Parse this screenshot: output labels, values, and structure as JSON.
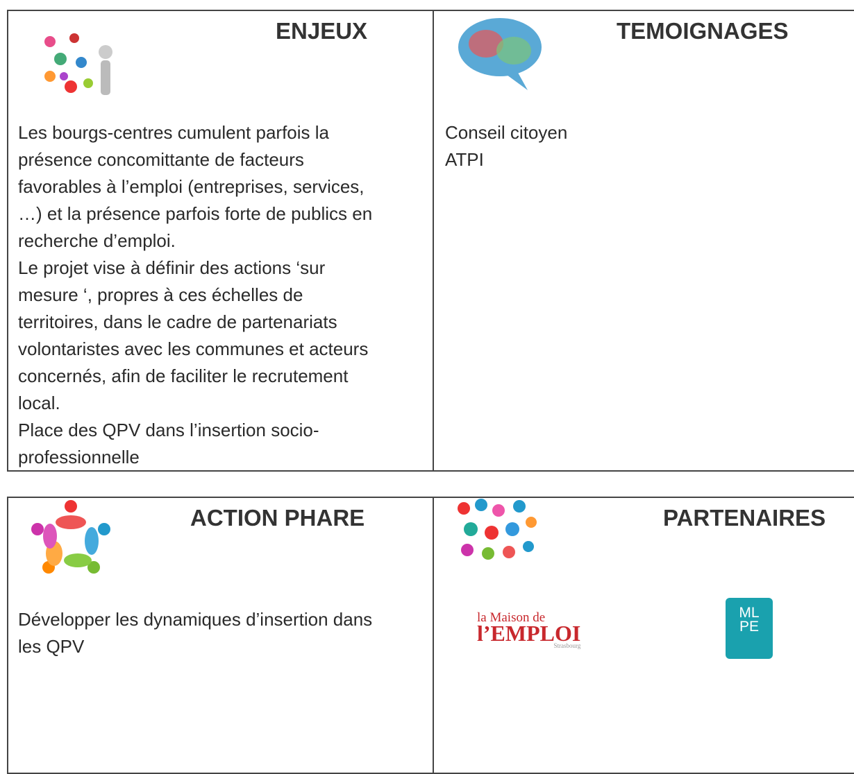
{
  "sections": [
    {
      "title": "ENJEUX",
      "paragraphs": [
        [
          "Les bourgs-centres cumulent parfois la",
          "présence concomittante de facteurs",
          "favorables à l’emploi (entreprises, services,",
          "…) et la présence parfois forte de publics en",
          "recherche d’emploi."
        ],
        [
          "Le projet vise à définir des actions ‘sur",
          "mesure ‘, propres à ces échelles de",
          "territoires, dans le cadre de partenariats",
          "volontaristes avec les communes et acteurs",
          "concernés, afin de faciliter le recrutement",
          "local."
        ],
        [
          "Place des QPV dans l’insertion socio-",
          "professionnelle"
        ]
      ]
    },
    {
      "title": "TEMOIGNAGES",
      "paragraphs": [
        [
          "Conseil citoyen",
          "ATPI"
        ]
      ]
    },
    {
      "title": "ACTION PHARE",
      "paragraphs": [
        [
          "Développer les dynamiques d’insertion dans",
          "les QPV"
        ]
      ]
    },
    {
      "title": "PARTENAIRES",
      "logos": [
        {
          "lines": [
            "la Maison de",
            "l’EMPLOI"
          ],
          "caption": "Strasbourg"
        },
        {
          "lines": [
            "ML",
            "PE"
          ]
        }
      ]
    }
  ]
}
